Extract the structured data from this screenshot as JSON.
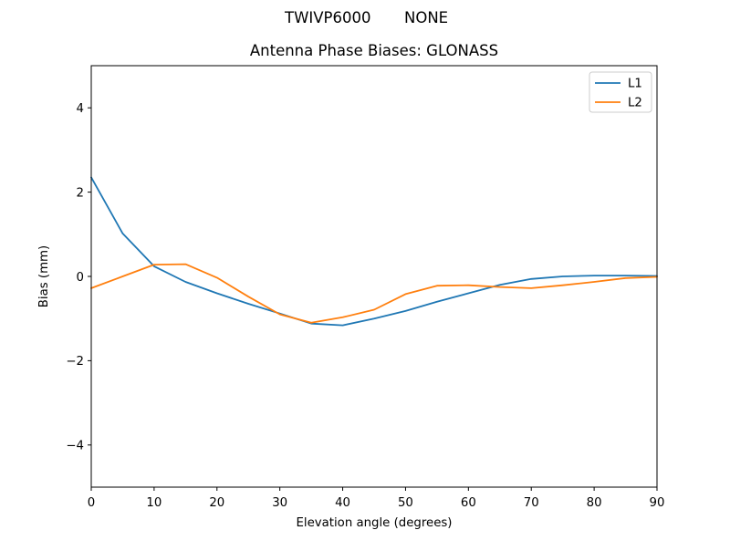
{
  "figure": {
    "suptitle_left": "TWIVP6000",
    "suptitle_right": "NONE"
  },
  "chart_data": {
    "type": "line",
    "title": "Antenna Phase Biases: GLONASS",
    "xlabel": "Elevation angle (degrees)",
    "ylabel": "Bias (mm)",
    "xlim": [
      0,
      90
    ],
    "ylim": [
      -5,
      5
    ],
    "xticks": [
      0,
      10,
      20,
      30,
      40,
      50,
      60,
      70,
      80,
      90
    ],
    "yticks": [
      -4,
      -2,
      0,
      2,
      4
    ],
    "ytick_labels": [
      "−4",
      "−2",
      "0",
      "2",
      "4"
    ],
    "grid": false,
    "legend_position": "upper right",
    "x": [
      0,
      5,
      10,
      15,
      20,
      25,
      30,
      35,
      40,
      45,
      50,
      55,
      60,
      65,
      70,
      75,
      80,
      85,
      90
    ],
    "series": [
      {
        "name": "L1",
        "color": "#1f77b4",
        "values": [
          2.35,
          1.02,
          0.24,
          -0.13,
          -0.4,
          -0.65,
          -0.88,
          -1.12,
          -1.16,
          -1.0,
          -0.82,
          -0.6,
          -0.4,
          -0.2,
          -0.06,
          0.0,
          0.02,
          0.02,
          0.01
        ]
      },
      {
        "name": "L2",
        "color": "#ff7f0e",
        "values": [
          -0.28,
          0.0,
          0.28,
          0.29,
          -0.03,
          -0.48,
          -0.9,
          -1.1,
          -0.97,
          -0.79,
          -0.42,
          -0.22,
          -0.21,
          -0.25,
          -0.28,
          -0.21,
          -0.13,
          -0.04,
          -0.01
        ]
      }
    ]
  }
}
